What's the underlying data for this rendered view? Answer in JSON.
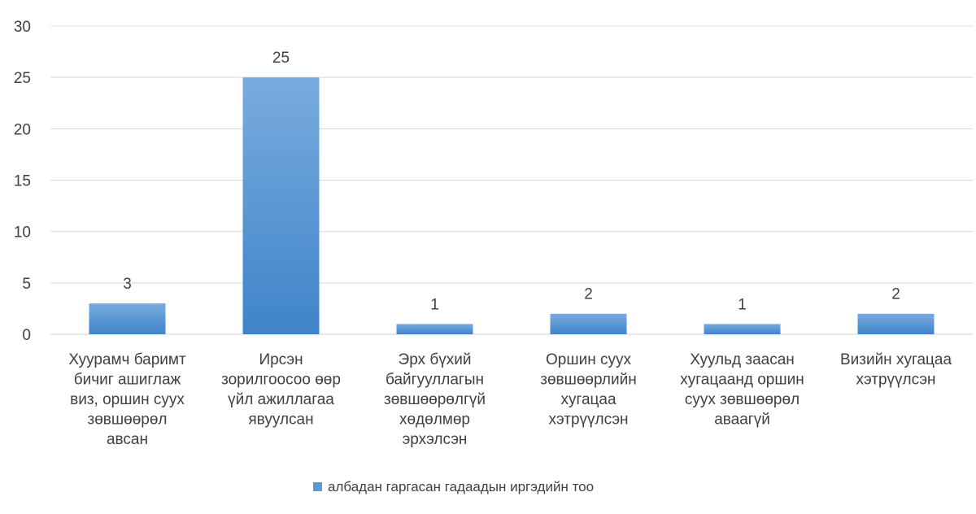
{
  "chart_data": {
    "type": "bar",
    "title": "",
    "xlabel": "",
    "ylabel": "",
    "ylim": [
      0,
      30
    ],
    "yticks": [
      0,
      5,
      10,
      15,
      20,
      25,
      30
    ],
    "grid": true,
    "legend_position": "bottom",
    "bar_color": "#5b9bd5",
    "bar_color_light": "#79acdf",
    "bar_color_dark": "#3f84c9",
    "categories": [
      [
        "Хуурамч баримт",
        "бичиг ашиглаж",
        "виз, оршин суух",
        "зөвшөөрөл",
        "авсан"
      ],
      [
        "Ирсэн",
        "зорилгоосоо өөр",
        "үйл ажиллагаа",
        "явуулсан"
      ],
      [
        "Эрх бүхий",
        "байгууллагын",
        "зөвшөөрөлгүй",
        "хөдөлмөр",
        "эрхэлсэн"
      ],
      [
        "Оршин суух",
        "зөвшөөрлийн",
        "хугацаа",
        "хэтрүүлсэн"
      ],
      [
        "Хуульд заасан",
        "хугацаанд оршин",
        "суух зөвшөөрөл",
        "аваагүй"
      ],
      [
        "Визийн хугацаа",
        "хэтрүүлсэн"
      ]
    ],
    "series": [
      {
        "name": "албадан гаргасан гадаадын иргэдийн тоо",
        "values": [
          3,
          25,
          1,
          2,
          1,
          2
        ]
      }
    ]
  }
}
